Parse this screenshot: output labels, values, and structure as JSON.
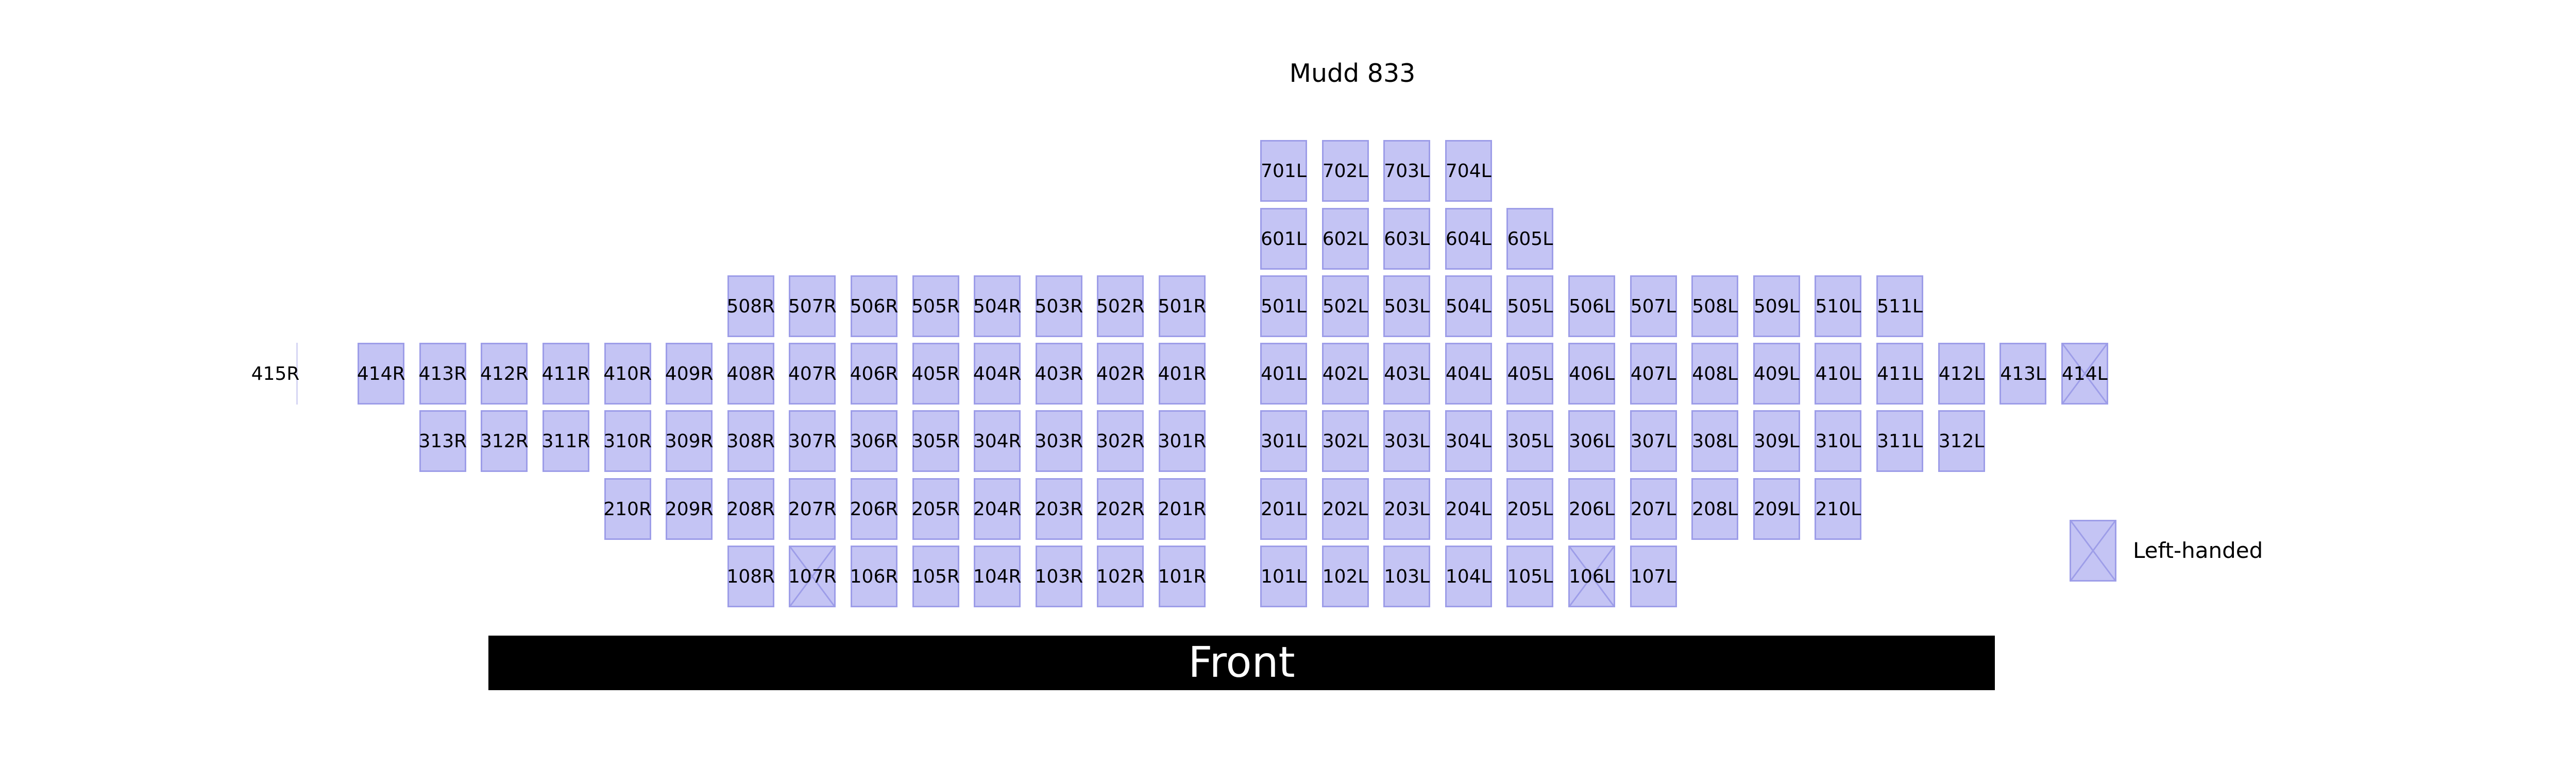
{
  "title": "Mudd 833",
  "front_label": "Front",
  "legend": {
    "label": "Left-handed",
    "icon": "cross-icon"
  },
  "colors": {
    "seat_fill": "#c4c4f4",
    "seat_border": "#9d9de8",
    "front_fill": "#000000",
    "front_text": "#ffffff"
  },
  "left_handed_seats": [
    "107R",
    "106L",
    "414L"
  ],
  "unboxed_seats": [
    "415R"
  ],
  "rows": [
    {
      "row": 7,
      "right": [],
      "left": [
        "701L",
        "702L",
        "703L",
        "704L"
      ]
    },
    {
      "row": 6,
      "right": [],
      "left": [
        "601L",
        "602L",
        "603L",
        "604L",
        "605L"
      ]
    },
    {
      "row": 5,
      "right": [
        "508R",
        "507R",
        "506R",
        "505R",
        "504R",
        "503R",
        "502R",
        "501R"
      ],
      "left": [
        "501L",
        "502L",
        "503L",
        "504L",
        "505L",
        "506L",
        "507L",
        "508L",
        "509L",
        "510L",
        "511L"
      ]
    },
    {
      "row": 4,
      "right": [
        "415R",
        "414R",
        "413R",
        "412R",
        "411R",
        "410R",
        "409R",
        "408R",
        "407R",
        "406R",
        "405R",
        "404R",
        "403R",
        "402R",
        "401R"
      ],
      "left": [
        "401L",
        "402L",
        "403L",
        "404L",
        "405L",
        "406L",
        "407L",
        "408L",
        "409L",
        "410L",
        "411L",
        "412L",
        "413L",
        "414L"
      ]
    },
    {
      "row": 3,
      "right": [
        "313R",
        "312R",
        "311R",
        "310R",
        "309R",
        "308R",
        "307R",
        "306R",
        "305R",
        "304R",
        "303R",
        "302R",
        "301R"
      ],
      "left": [
        "301L",
        "302L",
        "303L",
        "304L",
        "305L",
        "306L",
        "307L",
        "308L",
        "309L",
        "310L",
        "311L",
        "312L"
      ]
    },
    {
      "row": 2,
      "right": [
        "210R",
        "209R",
        "208R",
        "207R",
        "206R",
        "205R",
        "204R",
        "203R",
        "202R",
        "201R"
      ],
      "left": [
        "201L",
        "202L",
        "203L",
        "204L",
        "205L",
        "206L",
        "207L",
        "208L",
        "209L",
        "210L"
      ]
    },
    {
      "row": 1,
      "right": [
        "108R",
        "107R",
        "106R",
        "105R",
        "104R",
        "103R",
        "102R",
        "101R"
      ],
      "left": [
        "101L",
        "102L",
        "103L",
        "104L",
        "105L",
        "106L",
        "107L"
      ]
    }
  ]
}
